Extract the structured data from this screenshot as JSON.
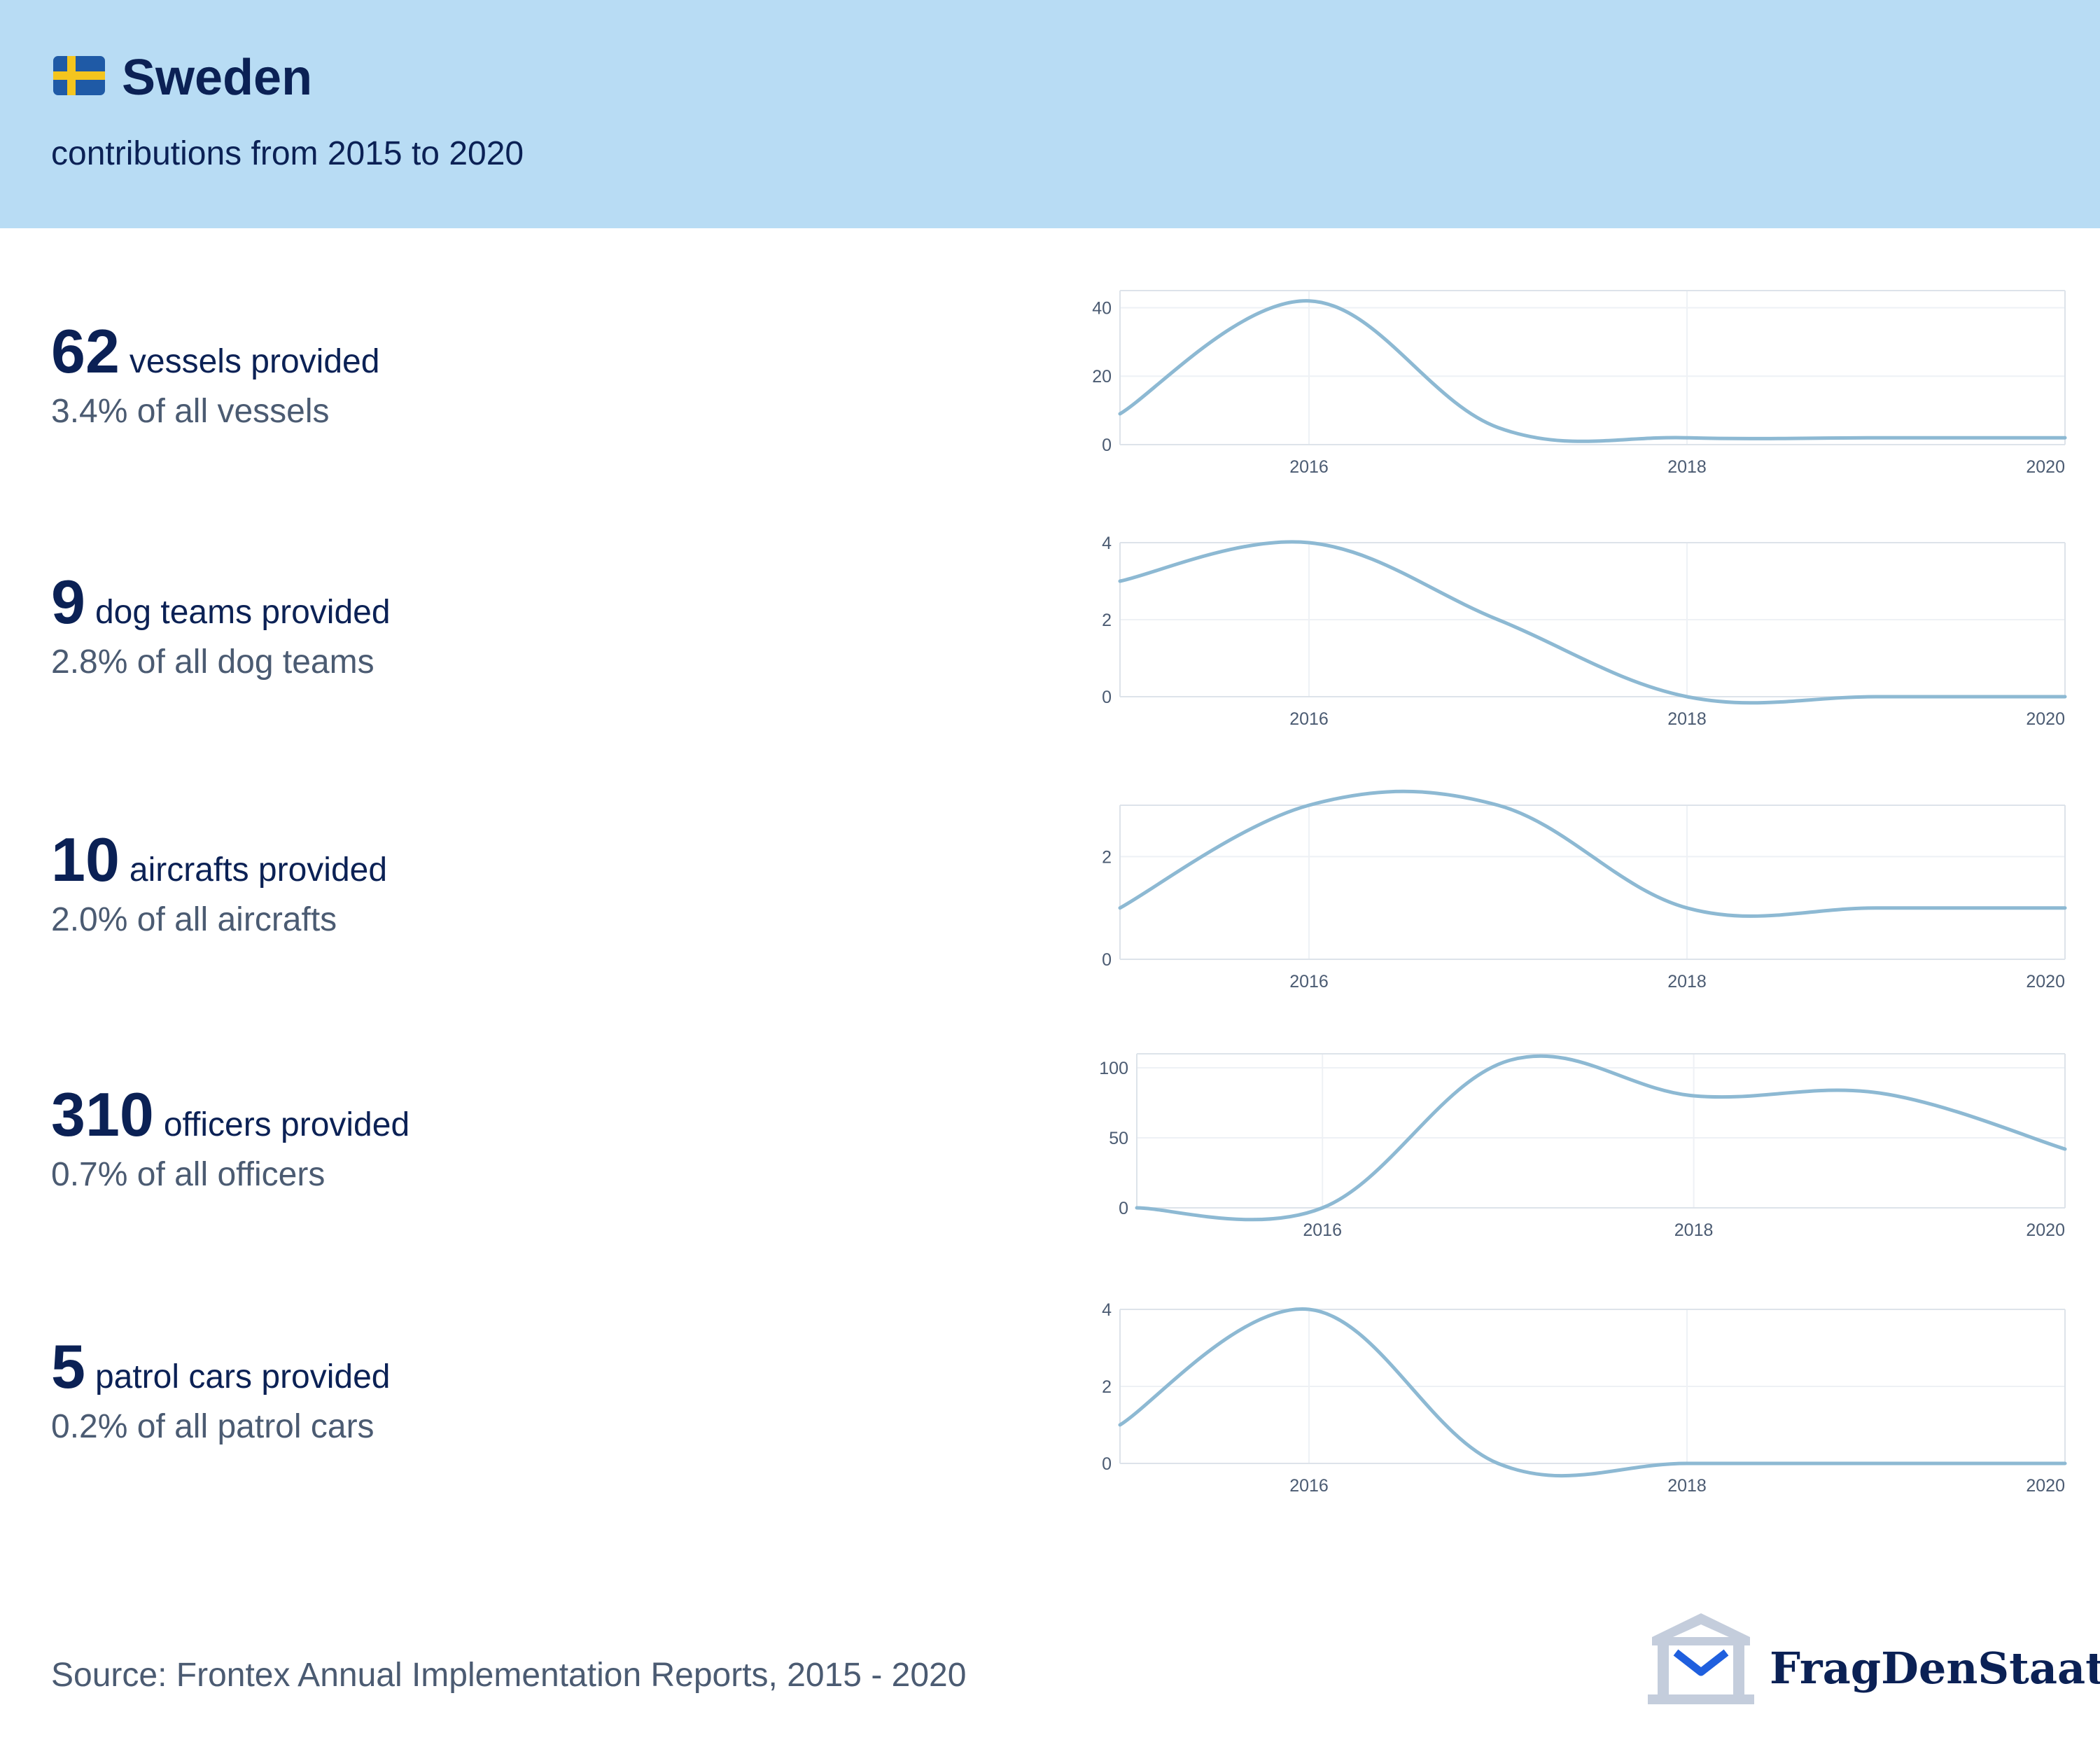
{
  "header": {
    "flag_icon": "sweden-flag-icon",
    "country": "Sweden",
    "subtitle": "contributions from 2015 to 2020"
  },
  "stats": [
    {
      "value": "62",
      "label": "vessels provided",
      "share": "3.4% of all vessels"
    },
    {
      "value": "9",
      "label": "dog teams provided",
      "share": "2.8% of all dog teams"
    },
    {
      "value": "10",
      "label": "aircrafts provided",
      "share": "2.0% of all aircrafts"
    },
    {
      "value": "310",
      "label": "officers provided",
      "share": "0.7% of all officers"
    },
    {
      "value": "5",
      "label": "patrol cars provided",
      "share": "0.2% of all patrol cars"
    }
  ],
  "chart_data": [
    {
      "type": "line",
      "x": [
        2015,
        2016,
        2017,
        2018,
        2019,
        2020
      ],
      "y": [
        9,
        42,
        5,
        2,
        2,
        2
      ],
      "xlim": [
        2015,
        2020
      ],
      "ylim": [
        0,
        45
      ],
      "xticks": [
        2016,
        2018,
        2020
      ],
      "yticks": [
        0,
        20,
        40
      ],
      "grid": true,
      "line_color": "#8db9d3"
    },
    {
      "type": "line",
      "x": [
        2015,
        2016,
        2017,
        2018,
        2019,
        2020
      ],
      "y": [
        3,
        4,
        2,
        0,
        0,
        0
      ],
      "xlim": [
        2015,
        2020
      ],
      "ylim": [
        0,
        4
      ],
      "xticks": [
        2016,
        2018,
        2020
      ],
      "yticks": [
        0,
        2,
        4
      ],
      "grid": true,
      "line_color": "#8db9d3"
    },
    {
      "type": "line",
      "x": [
        2015,
        2016,
        2017,
        2018,
        2019,
        2020
      ],
      "y": [
        1,
        3,
        3,
        1,
        1,
        1
      ],
      "xlim": [
        2015,
        2020
      ],
      "ylim": [
        0,
        3
      ],
      "xticks": [
        2016,
        2018,
        2020
      ],
      "yticks": [
        0,
        2
      ],
      "grid": true,
      "line_color": "#8db9d3"
    },
    {
      "type": "line",
      "x": [
        2015,
        2016,
        2017,
        2018,
        2019,
        2020
      ],
      "y": [
        0,
        0,
        105,
        80,
        82,
        42
      ],
      "xlim": [
        2015,
        2020
      ],
      "ylim": [
        0,
        110
      ],
      "xticks": [
        2016,
        2018,
        2020
      ],
      "yticks": [
        0,
        50,
        100
      ],
      "grid": true,
      "line_color": "#8db9d3"
    },
    {
      "type": "line",
      "x": [
        2015,
        2016,
        2017,
        2018,
        2019,
        2020
      ],
      "y": [
        1,
        4,
        0,
        0,
        0,
        0
      ],
      "xlim": [
        2015,
        2020
      ],
      "ylim": [
        0,
        4
      ],
      "xticks": [
        2016,
        2018,
        2020
      ],
      "yticks": [
        0,
        2,
        4
      ],
      "grid": true,
      "line_color": "#8db9d3"
    }
  ],
  "footer": {
    "source": "Source: Frontex Annual Implementation Reports, 2015 - 2020",
    "brand": "FragDenStaat",
    "brand_icon": "fragdenstaat-building-icon"
  },
  "colors": {
    "header_bg": "#b8dcf4",
    "title_text": "#0b2155",
    "secondary_text": "#4b5b72",
    "line": "#8db9d3",
    "brand_blue": "#1f5fde"
  }
}
